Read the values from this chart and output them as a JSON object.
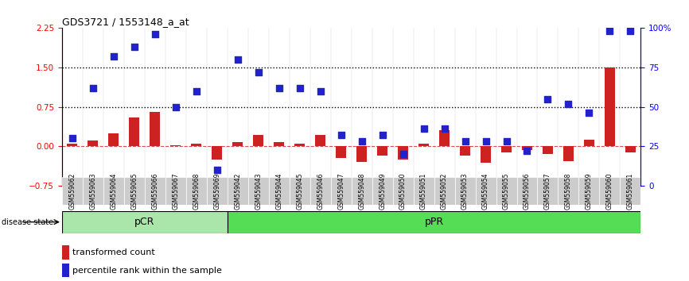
{
  "title": "GDS3721 / 1553148_a_at",
  "categories": [
    "GSM559062",
    "GSM559063",
    "GSM559064",
    "GSM559065",
    "GSM559066",
    "GSM559067",
    "GSM559068",
    "GSM559069",
    "GSM559042",
    "GSM559043",
    "GSM559044",
    "GSM559045",
    "GSM559046",
    "GSM559047",
    "GSM559048",
    "GSM559049",
    "GSM559050",
    "GSM559051",
    "GSM559052",
    "GSM559053",
    "GSM559054",
    "GSM559055",
    "GSM559056",
    "GSM559057",
    "GSM559058",
    "GSM559059",
    "GSM559060",
    "GSM559061"
  ],
  "transformed_count": [
    0.05,
    0.1,
    0.25,
    0.55,
    0.65,
    0.02,
    0.05,
    -0.25,
    0.08,
    0.22,
    0.08,
    0.05,
    0.22,
    -0.22,
    -0.3,
    -0.18,
    -0.25,
    0.05,
    0.3,
    -0.18,
    -0.32,
    -0.12,
    -0.08,
    -0.15,
    -0.28,
    0.12,
    1.5,
    -0.12
  ],
  "percentile_rank": [
    30,
    62,
    82,
    88,
    96,
    50,
    60,
    10,
    80,
    72,
    62,
    62,
    60,
    32,
    28,
    32,
    20,
    36,
    36,
    28,
    28,
    28,
    22,
    55,
    52,
    46,
    98,
    98
  ],
  "pCR_count": 8,
  "pPR_count": 20,
  "pCR_color": "#aae6aa",
  "pPR_color": "#55dd55",
  "bar_color": "#cc2222",
  "dot_color": "#2222cc",
  "left_ylim": [
    -0.75,
    2.25
  ],
  "right_ylim": [
    0,
    100
  ],
  "left_yticks": [
    -0.75,
    0.0,
    0.75,
    1.5,
    2.25
  ],
  "right_yticks": [
    0,
    25,
    50,
    75,
    100
  ],
  "hline_values": [
    0.75,
    1.5
  ],
  "background_color": "#ffffff",
  "legend_items": [
    "transformed count",
    "percentile rank within the sample"
  ],
  "figsize": [
    8.66,
    3.54
  ],
  "dpi": 100
}
